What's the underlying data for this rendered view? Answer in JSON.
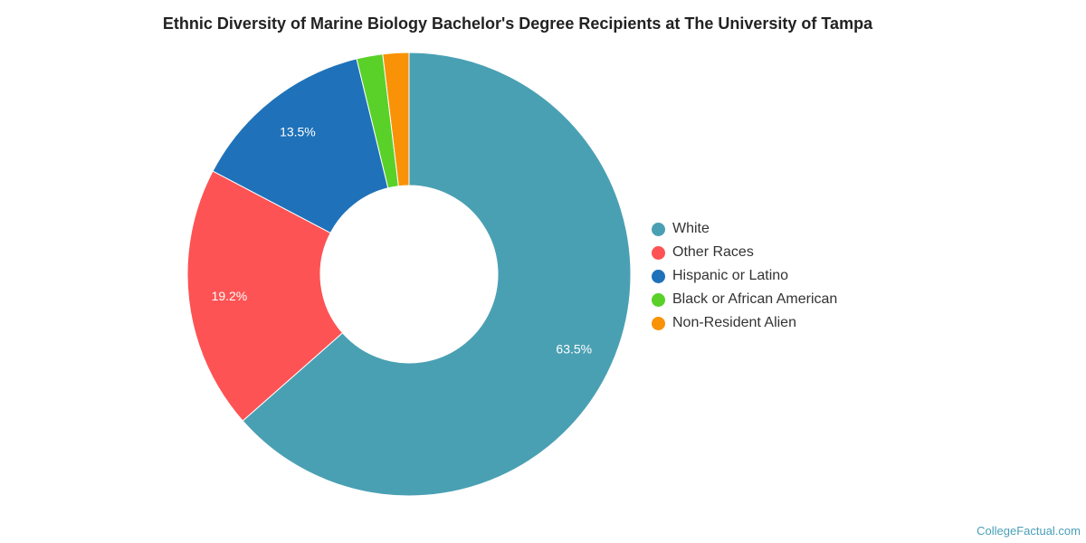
{
  "chart_data": {
    "type": "pie",
    "title": "Ethnic Diversity of Marine Biology Bachelor's Degree Recipients at The University of Tampa",
    "series": [
      {
        "name": "White",
        "value": 63.5,
        "label": "63.5%",
        "color": "#4aa0b3"
      },
      {
        "name": "Other Races",
        "value": 19.2,
        "label": "19.2%",
        "color": "#fd5354"
      },
      {
        "name": "Hispanic or Latino",
        "value": 13.5,
        "label": "13.5%",
        "color": "#1f72b9"
      },
      {
        "name": "Black or African American",
        "value": 1.9,
        "label": "",
        "color": "#59d128"
      },
      {
        "name": "Non-Resident Alien",
        "value": 1.9,
        "label": "",
        "color": "#f99207"
      }
    ],
    "legend_position": "right"
  },
  "watermark": "CollegeFactual.com"
}
